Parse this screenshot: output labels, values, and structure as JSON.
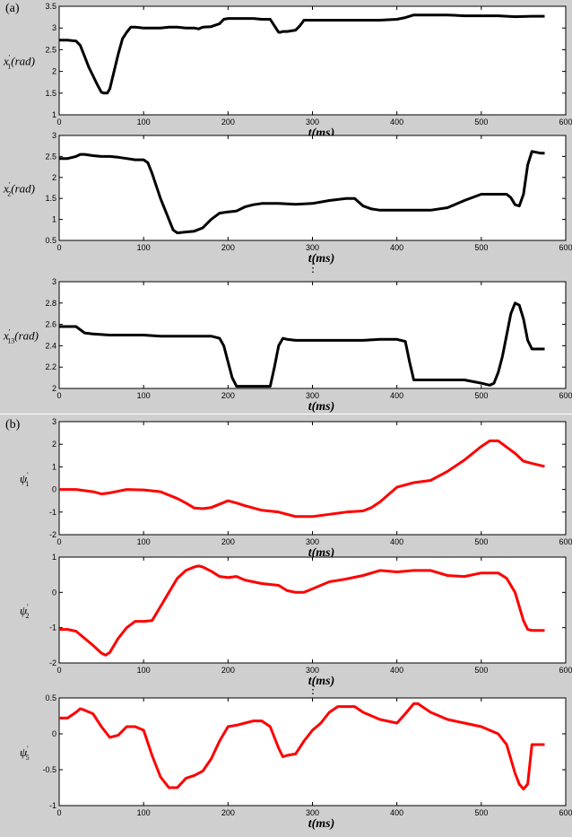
{
  "panels": [
    {
      "label": "(a)"
    },
    {
      "label": "(b)"
    }
  ],
  "ellipsis": "⋮",
  "chart_data": [
    {
      "type": "line",
      "panel": "(a)",
      "ylabel_main": "x",
      "ylabel_sub": "1",
      "ylabel_unit": "(rad)",
      "xlabel_main": "t",
      "xlabel_unit": "(ms)",
      "xlim": [
        0,
        600
      ],
      "ylim": [
        1,
        3.5
      ],
      "xticks": [
        "0",
        "100",
        "200",
        "300",
        "400",
        "500",
        "600"
      ],
      "yticks": [
        "1",
        "1.5",
        "2",
        "2.5",
        "3",
        "3.5"
      ],
      "color": "#000000",
      "x": [
        0,
        10,
        20,
        25,
        30,
        35,
        40,
        45,
        50,
        53,
        57,
        60,
        65,
        70,
        75,
        80,
        85,
        90,
        100,
        110,
        120,
        130,
        140,
        150,
        160,
        165,
        170,
        180,
        190,
        195,
        200,
        210,
        220,
        230,
        240,
        250,
        255,
        260,
        262,
        265,
        270,
        280,
        285,
        290,
        300,
        320,
        340,
        360,
        380,
        400,
        410,
        420,
        440,
        460,
        480,
        500,
        520,
        540,
        560,
        575
      ],
      "y": [
        2.72,
        2.72,
        2.7,
        2.6,
        2.35,
        2.1,
        1.9,
        1.7,
        1.52,
        1.5,
        1.5,
        1.6,
        2.0,
        2.4,
        2.75,
        2.9,
        3.02,
        3.02,
        3.0,
        3.0,
        3.0,
        3.02,
        3.02,
        3.0,
        3.0,
        2.98,
        3.02,
        3.03,
        3.1,
        3.2,
        3.22,
        3.22,
        3.22,
        3.22,
        3.2,
        3.2,
        3.05,
        2.9,
        2.9,
        2.92,
        2.92,
        2.95,
        3.05,
        3.18,
        3.18,
        3.18,
        3.18,
        3.18,
        3.18,
        3.2,
        3.24,
        3.3,
        3.3,
        3.3,
        3.28,
        3.28,
        3.28,
        3.26,
        3.27,
        3.27
      ]
    },
    {
      "type": "line",
      "panel": "(a)",
      "ylabel_main": "x",
      "ylabel_sub": "2",
      "ylabel_unit": "(rad)",
      "xlabel_main": "t",
      "xlabel_unit": "(ms)",
      "xlim": [
        0,
        600
      ],
      "ylim": [
        0.5,
        3
      ],
      "xticks": [
        "0",
        "100",
        "200",
        "300",
        "400",
        "500",
        "600"
      ],
      "yticks": [
        "0.5",
        "1",
        "1.5",
        "2",
        "2.5",
        "3"
      ],
      "color": "#000000",
      "x": [
        0,
        10,
        20,
        25,
        30,
        40,
        50,
        60,
        70,
        80,
        90,
        100,
        105,
        110,
        115,
        120,
        130,
        135,
        140,
        150,
        160,
        170,
        180,
        190,
        200,
        210,
        220,
        230,
        240,
        260,
        280,
        300,
        320,
        340,
        350,
        360,
        370,
        380,
        400,
        420,
        440,
        460,
        480,
        500,
        520,
        530,
        535,
        540,
        545,
        550,
        555,
        560,
        570,
        575
      ],
      "y": [
        2.45,
        2.45,
        2.5,
        2.55,
        2.55,
        2.52,
        2.5,
        2.5,
        2.48,
        2.45,
        2.42,
        2.42,
        2.35,
        2.1,
        1.8,
        1.5,
        1.0,
        0.75,
        0.68,
        0.7,
        0.72,
        0.8,
        1.0,
        1.15,
        1.18,
        1.2,
        1.3,
        1.35,
        1.38,
        1.38,
        1.36,
        1.38,
        1.45,
        1.5,
        1.5,
        1.32,
        1.25,
        1.22,
        1.22,
        1.22,
        1.22,
        1.28,
        1.45,
        1.6,
        1.6,
        1.6,
        1.52,
        1.35,
        1.32,
        1.6,
        2.3,
        2.62,
        2.58,
        2.58
      ]
    },
    {
      "type": "line",
      "panel": "(a)",
      "ylabel_main": "x",
      "ylabel_sub": "13",
      "ylabel_unit": "(rad)",
      "xlabel_main": "t",
      "xlabel_unit": "(ms)",
      "xlim": [
        0,
        600
      ],
      "ylim": [
        2,
        3
      ],
      "xticks": [
        "0",
        "100",
        "200",
        "300",
        "400",
        "500",
        "600"
      ],
      "yticks": [
        "2",
        "2.2",
        "2.4",
        "2.6",
        "2.8",
        "3"
      ],
      "color": "#000000",
      "x": [
        0,
        20,
        30,
        40,
        60,
        80,
        100,
        120,
        140,
        160,
        180,
        190,
        195,
        200,
        205,
        210,
        220,
        240,
        250,
        255,
        260,
        265,
        270,
        280,
        300,
        320,
        340,
        360,
        380,
        400,
        410,
        415,
        420,
        440,
        460,
        480,
        500,
        510,
        515,
        520,
        525,
        530,
        535,
        540,
        545,
        550,
        555,
        560,
        570,
        575
      ],
      "y": [
        2.58,
        2.58,
        2.52,
        2.51,
        2.5,
        2.5,
        2.5,
        2.49,
        2.49,
        2.49,
        2.49,
        2.47,
        2.4,
        2.25,
        2.1,
        2.02,
        2.02,
        2.02,
        2.02,
        2.2,
        2.4,
        2.47,
        2.46,
        2.45,
        2.45,
        2.45,
        2.45,
        2.45,
        2.46,
        2.46,
        2.44,
        2.25,
        2.08,
        2.08,
        2.08,
        2.08,
        2.05,
        2.03,
        2.05,
        2.15,
        2.3,
        2.5,
        2.7,
        2.8,
        2.78,
        2.65,
        2.45,
        2.37,
        2.37,
        2.37
      ]
    },
    {
      "type": "line",
      "panel": "(b)",
      "ylabel_main": "ψ",
      "ylabel_sub": "1",
      "ylabel_unit": "",
      "xlabel_main": "t",
      "xlabel_unit": "(ms)",
      "xlim": [
        0,
        600
      ],
      "ylim": [
        -2,
        3
      ],
      "xticks": [
        "0",
        "100",
        "200",
        "300",
        "400",
        "500",
        "600"
      ],
      "yticks": [
        "-2",
        "-1",
        "0",
        "1",
        "2",
        "3"
      ],
      "color": "#ff0000",
      "x": [
        0,
        20,
        40,
        50,
        60,
        80,
        100,
        120,
        140,
        150,
        160,
        170,
        180,
        200,
        210,
        220,
        240,
        260,
        280,
        300,
        320,
        340,
        360,
        370,
        380,
        400,
        420,
        440,
        460,
        480,
        500,
        510,
        520,
        540,
        550,
        560,
        575
      ],
      "y": [
        0.0,
        0.0,
        -0.1,
        -0.2,
        -0.15,
        0.0,
        -0.02,
        -0.1,
        -0.4,
        -0.6,
        -0.82,
        -0.85,
        -0.8,
        -0.5,
        -0.6,
        -0.72,
        -0.92,
        -1.0,
        -1.2,
        -1.2,
        -1.1,
        -1.0,
        -0.95,
        -0.8,
        -0.55,
        0.1,
        0.3,
        0.4,
        0.8,
        1.3,
        1.9,
        2.15,
        2.15,
        1.6,
        1.25,
        1.15,
        1.02
      ]
    },
    {
      "type": "line",
      "panel": "(b)",
      "ylabel_main": "ψ",
      "ylabel_sub": "2",
      "ylabel_unit": "",
      "xlabel_main": "t",
      "xlabel_unit": "(ms)",
      "xlim": [
        0,
        600
      ],
      "ylim": [
        -2,
        1
      ],
      "xticks": [
        "0",
        "100",
        "200",
        "300",
        "400",
        "500",
        "600"
      ],
      "yticks": [
        "-2",
        "-1",
        "0",
        "1"
      ],
      "color": "#ff0000",
      "x": [
        0,
        10,
        20,
        30,
        40,
        50,
        55,
        60,
        70,
        80,
        90,
        100,
        110,
        120,
        130,
        140,
        150,
        160,
        165,
        170,
        180,
        190,
        200,
        210,
        220,
        240,
        260,
        270,
        280,
        290,
        300,
        320,
        340,
        360,
        380,
        400,
        420,
        440,
        460,
        480,
        500,
        520,
        530,
        540,
        545,
        550,
        555,
        560,
        575
      ],
      "y": [
        -1.05,
        -1.05,
        -1.1,
        -1.3,
        -1.5,
        -1.72,
        -1.78,
        -1.7,
        -1.3,
        -1.0,
        -0.82,
        -0.82,
        -0.8,
        -0.4,
        0.0,
        0.4,
        0.62,
        0.72,
        0.75,
        0.72,
        0.6,
        0.45,
        0.42,
        0.45,
        0.35,
        0.25,
        0.2,
        0.05,
        0.0,
        0.0,
        0.1,
        0.3,
        0.38,
        0.48,
        0.62,
        0.58,
        0.62,
        0.62,
        0.48,
        0.45,
        0.55,
        0.55,
        0.4,
        0.0,
        -0.4,
        -0.8,
        -1.05,
        -1.08,
        -1.08
      ]
    },
    {
      "type": "line",
      "panel": "(b)",
      "ylabel_main": "ψ",
      "ylabel_sub": "5",
      "ylabel_unit": "",
      "xlabel_main": "t",
      "xlabel_unit": "(ms)",
      "xlim": [
        0,
        600
      ],
      "ylim": [
        -1,
        0.5
      ],
      "xticks": [
        "0",
        "100",
        "200",
        "300",
        "400",
        "500",
        "600"
      ],
      "yticks": [
        "-1",
        "-0.5",
        "0",
        "0.5"
      ],
      "color": "#ff0000",
      "x": [
        0,
        10,
        20,
        25,
        30,
        40,
        50,
        60,
        70,
        80,
        90,
        100,
        110,
        120,
        130,
        140,
        150,
        160,
        170,
        180,
        190,
        200,
        210,
        220,
        230,
        240,
        250,
        260,
        265,
        270,
        280,
        290,
        300,
        310,
        320,
        330,
        340,
        350,
        360,
        380,
        400,
        410,
        420,
        425,
        430,
        440,
        460,
        480,
        500,
        520,
        530,
        540,
        545,
        550,
        555,
        560,
        575
      ],
      "y": [
        0.22,
        0.22,
        0.3,
        0.35,
        0.33,
        0.28,
        0.1,
        -0.05,
        -0.02,
        0.1,
        0.1,
        0.05,
        -0.3,
        -0.6,
        -0.75,
        -0.75,
        -0.62,
        -0.58,
        -0.52,
        -0.35,
        -0.1,
        0.1,
        0.12,
        0.15,
        0.18,
        0.18,
        0.1,
        -0.2,
        -0.32,
        -0.3,
        -0.28,
        -0.1,
        0.05,
        0.15,
        0.3,
        0.38,
        0.38,
        0.38,
        0.3,
        0.2,
        0.15,
        0.28,
        0.42,
        0.42,
        0.38,
        0.3,
        0.2,
        0.15,
        0.1,
        0.0,
        -0.15,
        -0.55,
        -0.7,
        -0.77,
        -0.7,
        -0.15,
        -0.15
      ]
    }
  ]
}
